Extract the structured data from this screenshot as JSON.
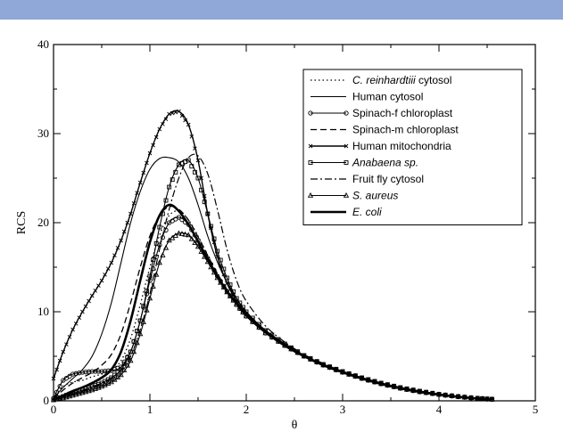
{
  "header": {
    "bar_color": "#8fa8d8"
  },
  "chart_data": {
    "type": "line",
    "xlabel": "θ",
    "ylabel": "RCS",
    "xlim": [
      0,
      5
    ],
    "ylim": [
      0,
      40
    ],
    "xticks": [
      0,
      1,
      2,
      3,
      4,
      5
    ],
    "yticks": [
      0,
      10,
      20,
      30,
      40
    ],
    "grid": false,
    "legend_position": "top-right",
    "series": [
      {
        "name": "C. reinhardtiii",
        "name_suffix": " cytosol",
        "italic": true,
        "style": "dotted",
        "marker": "none",
        "x": [
          0.0,
          0.1,
          0.2,
          0.3,
          0.4,
          0.5,
          0.6,
          0.7,
          0.8,
          0.9,
          1.0,
          1.1,
          1.2,
          1.3,
          1.4,
          1.5,
          1.6,
          1.7,
          1.8,
          1.9,
          2.0,
          2.2,
          2.4,
          2.6,
          2.8,
          3.0,
          3.2,
          3.4,
          3.6,
          3.8,
          4.0,
          4.2,
          4.4,
          4.55
        ],
        "y": [
          0.2,
          1.6,
          2.1,
          2.3,
          2.7,
          3.0,
          3.5,
          4.5,
          7.0,
          10.8,
          15.0,
          18.6,
          20.8,
          21.3,
          20.3,
          18.5,
          16.3,
          14.2,
          12.4,
          10.9,
          9.6,
          7.7,
          6.3,
          5.1,
          4.1,
          3.3,
          2.6,
          2.0,
          1.5,
          1.1,
          0.75,
          0.5,
          0.3,
          0.2
        ]
      },
      {
        "name": "Human cytosol",
        "style": "solid-thin",
        "marker": "none",
        "x": [
          0.0,
          0.1,
          0.2,
          0.3,
          0.4,
          0.5,
          0.6,
          0.7,
          0.8,
          0.9,
          1.0,
          1.1,
          1.2,
          1.3,
          1.4,
          1.5,
          1.6,
          1.7,
          1.8,
          1.9,
          2.0,
          2.2,
          2.4,
          2.6,
          2.8,
          3.0,
          3.2,
          3.4,
          3.6,
          3.8,
          4.0,
          4.2,
          4.4,
          4.55
        ],
        "y": [
          0.3,
          1.5,
          2.5,
          3.5,
          5.0,
          7.5,
          11.0,
          15.5,
          20.0,
          23.5,
          26.0,
          27.2,
          27.3,
          26.8,
          25.0,
          22.0,
          18.5,
          15.6,
          13.3,
          11.5,
          10.0,
          7.9,
          6.4,
          5.1,
          4.1,
          3.3,
          2.6,
          2.0,
          1.5,
          1.1,
          0.75,
          0.5,
          0.3,
          0.2
        ]
      },
      {
        "name": "Spinach-f chloroplast",
        "style": "solid-thin",
        "marker": "circle",
        "x": [
          0.0,
          0.1,
          0.2,
          0.3,
          0.4,
          0.5,
          0.6,
          0.7,
          0.8,
          0.9,
          1.0,
          1.1,
          1.2,
          1.3,
          1.4,
          1.5,
          1.6,
          1.7,
          1.8,
          1.9,
          2.0,
          2.2,
          2.4,
          2.6,
          2.8,
          3.0,
          3.2,
          3.4,
          3.6,
          3.8,
          4.0,
          4.2,
          4.4,
          4.55
        ],
        "y": [
          0.3,
          2.3,
          3.0,
          3.2,
          3.3,
          3.3,
          3.4,
          3.8,
          5.5,
          9.0,
          13.5,
          17.5,
          20.0,
          20.6,
          19.8,
          18.0,
          16.0,
          14.0,
          12.3,
          10.8,
          9.5,
          7.6,
          6.2,
          5.0,
          4.0,
          3.2,
          2.5,
          1.9,
          1.4,
          1.0,
          0.7,
          0.45,
          0.25,
          0.15
        ]
      },
      {
        "name": "Spinach-m chloroplast",
        "style": "dashed",
        "marker": "none",
        "x": [
          0.0,
          0.1,
          0.2,
          0.3,
          0.4,
          0.5,
          0.6,
          0.7,
          0.8,
          0.9,
          1.0,
          1.1,
          1.2,
          1.3,
          1.4,
          1.5,
          1.6,
          1.7,
          1.8,
          1.9,
          2.0,
          2.2,
          2.4,
          2.6,
          2.8,
          3.0,
          3.2,
          3.4,
          3.6,
          3.8,
          4.0,
          4.2,
          4.4,
          4.55
        ],
        "y": [
          0.2,
          1.2,
          2.0,
          2.6,
          3.2,
          4.0,
          5.2,
          7.5,
          11.0,
          15.0,
          18.5,
          20.8,
          21.8,
          21.5,
          20.3,
          18.4,
          16.3,
          14.3,
          12.5,
          11.0,
          9.7,
          7.8,
          6.3,
          5.1,
          4.1,
          3.3,
          2.6,
          2.0,
          1.5,
          1.1,
          0.75,
          0.5,
          0.3,
          0.2
        ]
      },
      {
        "name": "Human mitochondria",
        "style": "solid",
        "marker": "x",
        "x": [
          0.0,
          0.1,
          0.2,
          0.3,
          0.4,
          0.5,
          0.6,
          0.7,
          0.8,
          0.9,
          1.0,
          1.1,
          1.2,
          1.3,
          1.4,
          1.5,
          1.6,
          1.7,
          1.8,
          1.9,
          2.0,
          2.2,
          2.4,
          2.6,
          2.8,
          3.0,
          3.2,
          3.4,
          3.6,
          3.8,
          4.0,
          4.2,
          4.4,
          4.55
        ],
        "y": [
          2.5,
          5.5,
          8.0,
          10.0,
          11.8,
          13.5,
          15.5,
          18.0,
          21.0,
          24.5,
          27.8,
          30.5,
          32.2,
          32.5,
          31.0,
          27.0,
          21.0,
          16.2,
          13.2,
          11.2,
          9.8,
          7.9,
          6.4,
          5.1,
          4.1,
          3.3,
          2.6,
          2.0,
          1.5,
          1.1,
          0.75,
          0.5,
          0.3,
          0.2
        ]
      },
      {
        "name": "Anabaena sp.",
        "italic": true,
        "style": "solid-thin",
        "marker": "square",
        "x": [
          0.0,
          0.1,
          0.2,
          0.3,
          0.4,
          0.5,
          0.6,
          0.7,
          0.8,
          0.9,
          1.0,
          1.1,
          1.2,
          1.3,
          1.4,
          1.5,
          1.6,
          1.7,
          1.8,
          1.9,
          2.0,
          2.2,
          2.4,
          2.6,
          2.8,
          3.0,
          3.2,
          3.4,
          3.6,
          3.8,
          4.0,
          4.2,
          4.4,
          4.55
        ],
        "y": [
          0.1,
          0.5,
          0.9,
          1.2,
          1.6,
          2.0,
          2.6,
          3.5,
          5.5,
          9.0,
          14.0,
          19.5,
          24.0,
          26.5,
          27.0,
          25.0,
          21.0,
          16.8,
          13.8,
          11.5,
          10.0,
          7.9,
          6.4,
          5.1,
          4.1,
          3.3,
          2.6,
          2.0,
          1.5,
          1.1,
          0.75,
          0.5,
          0.3,
          0.2
        ]
      },
      {
        "name": "Fruit fly cytosol",
        "style": "dashdot",
        "marker": "none",
        "x": [
          0.0,
          0.1,
          0.2,
          0.3,
          0.4,
          0.5,
          0.6,
          0.7,
          0.8,
          0.9,
          1.0,
          1.1,
          1.2,
          1.3,
          1.4,
          1.5,
          1.6,
          1.7,
          1.8,
          1.9,
          2.0,
          2.2,
          2.4,
          2.6,
          2.8,
          3.0,
          3.2,
          3.4,
          3.6,
          3.8,
          4.0,
          4.2,
          4.4,
          4.55
        ],
        "y": [
          0.1,
          0.4,
          0.8,
          1.1,
          1.5,
          1.9,
          2.5,
          3.4,
          5.0,
          8.0,
          12.0,
          17.0,
          21.5,
          25.0,
          27.3,
          27.5,
          25.5,
          21.5,
          17.0,
          13.5,
          11.2,
          8.4,
          6.6,
          5.2,
          4.2,
          3.3,
          2.6,
          2.0,
          1.5,
          1.1,
          0.75,
          0.5,
          0.3,
          0.2
        ]
      },
      {
        "name": "S. aureus",
        "italic": true,
        "style": "solid-thin",
        "marker": "triangle",
        "x": [
          0.0,
          0.1,
          0.2,
          0.3,
          0.4,
          0.5,
          0.6,
          0.7,
          0.8,
          0.9,
          1.0,
          1.1,
          1.2,
          1.3,
          1.4,
          1.5,
          1.6,
          1.7,
          1.8,
          1.9,
          2.0,
          2.2,
          2.4,
          2.6,
          2.8,
          3.0,
          3.2,
          3.4,
          3.6,
          3.8,
          4.0,
          4.2,
          4.4,
          4.55
        ],
        "y": [
          0.1,
          0.3,
          0.6,
          0.9,
          1.2,
          1.6,
          2.1,
          2.9,
          4.5,
          7.5,
          11.5,
          15.5,
          18.0,
          18.8,
          18.6,
          17.3,
          15.6,
          13.8,
          12.2,
          10.8,
          9.5,
          7.6,
          6.2,
          5.0,
          4.0,
          3.2,
          2.5,
          1.9,
          1.4,
          1.0,
          0.7,
          0.45,
          0.25,
          0.15
        ]
      },
      {
        "name": "E. coli",
        "italic": true,
        "style": "solid-thick",
        "marker": "none",
        "x": [
          0.0,
          0.1,
          0.2,
          0.3,
          0.4,
          0.5,
          0.6,
          0.7,
          0.8,
          0.9,
          1.0,
          1.1,
          1.2,
          1.3,
          1.4,
          1.5,
          1.6,
          1.7,
          1.8,
          1.9,
          2.0,
          2.2,
          2.4,
          2.6,
          2.8,
          3.0,
          3.2,
          3.4,
          3.6,
          3.8,
          4.0,
          4.2,
          4.4,
          4.55
        ],
        "y": [
          0.1,
          0.6,
          1.1,
          1.5,
          2.0,
          2.6,
          3.5,
          5.5,
          9.0,
          13.5,
          17.8,
          20.8,
          22.0,
          21.3,
          19.8,
          17.9,
          15.9,
          14.0,
          12.3,
          10.9,
          9.6,
          7.7,
          6.2,
          5.0,
          4.0,
          3.2,
          2.5,
          1.9,
          1.4,
          1.0,
          0.7,
          0.45,
          0.25,
          0.15
        ]
      }
    ]
  }
}
